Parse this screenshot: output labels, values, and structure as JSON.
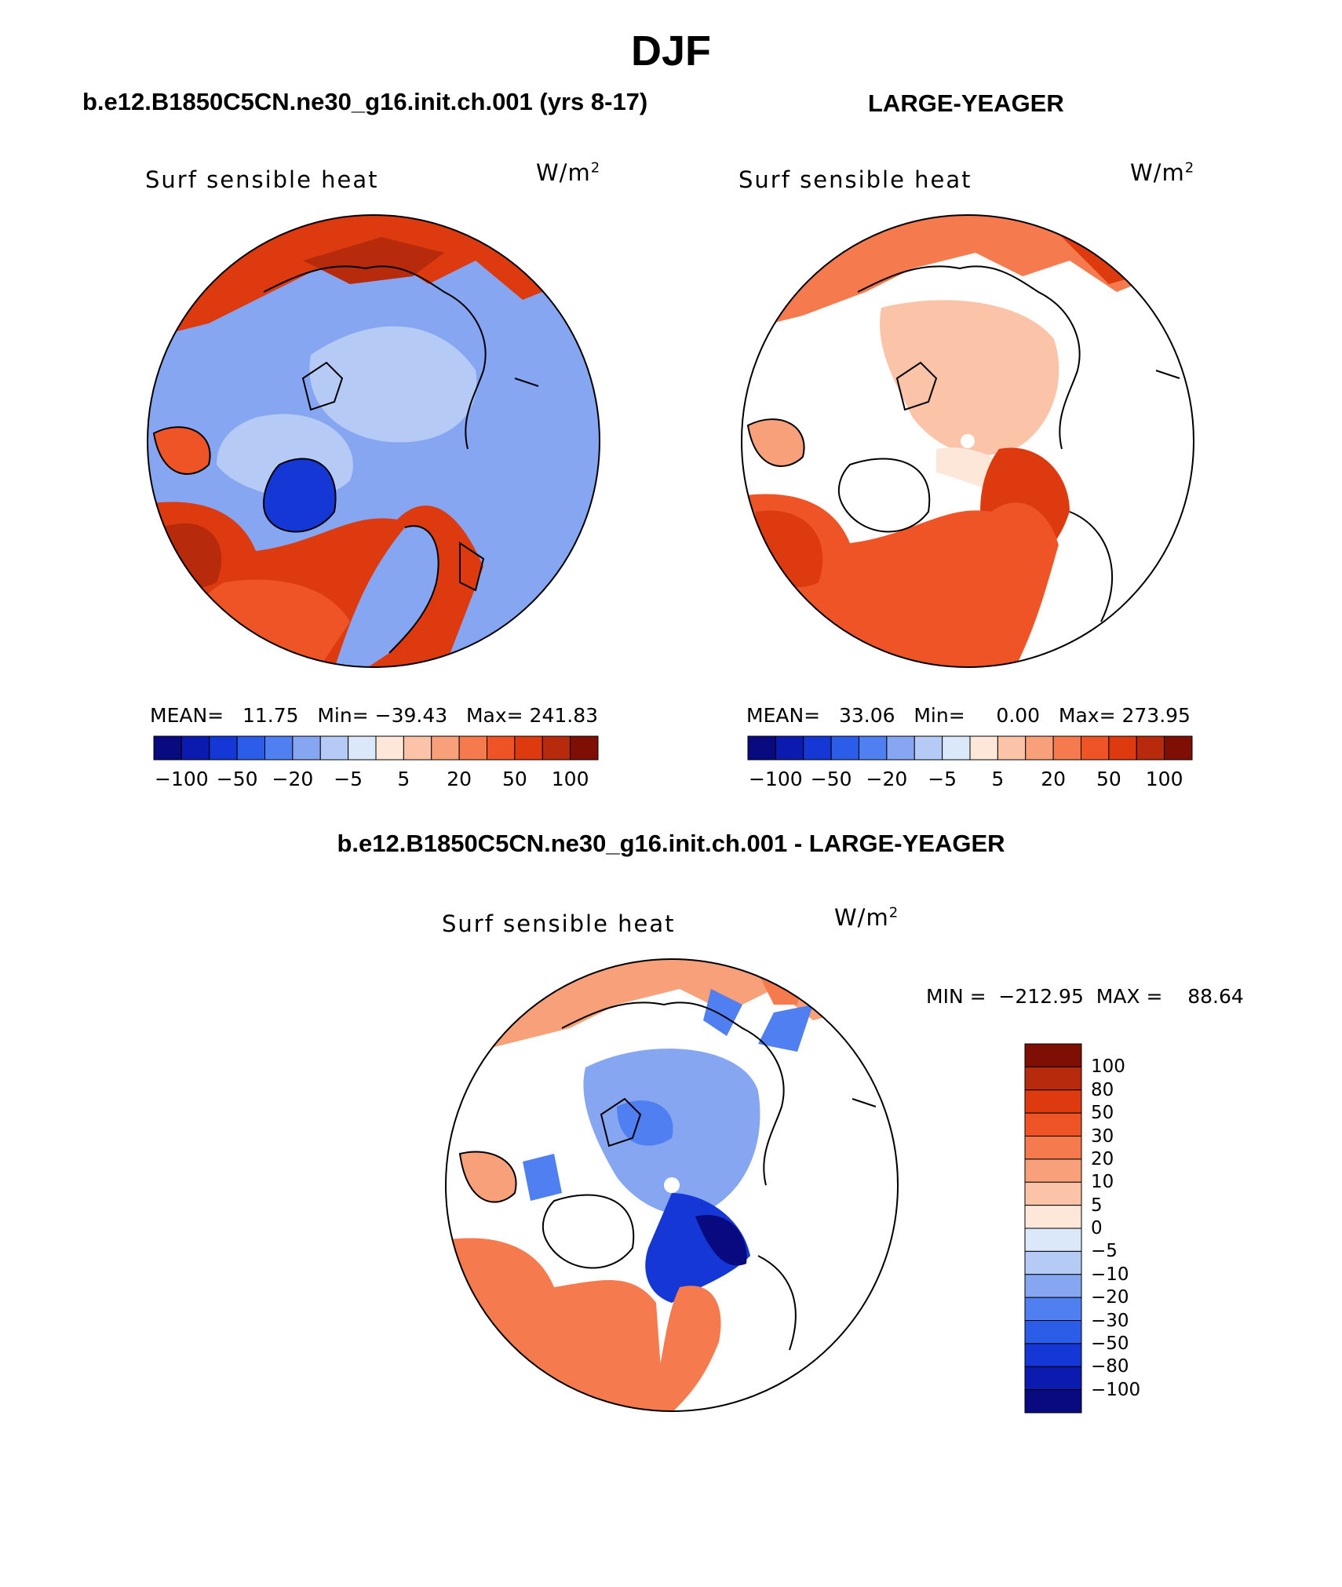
{
  "title": "DJF",
  "panels": [
    {
      "id": "case",
      "subtitle": "b.e12.B1850C5CN.ne30_g16.init.ch.001 (yrs 8-17)",
      "variable": "Surf sensible heat",
      "units_base": "W/m",
      "units_exp": "2",
      "stats": "MEAN=   11.75   Min= −39.43   Max= 241.83"
    },
    {
      "id": "obs",
      "subtitle": "LARGE-YEAGER",
      "variable": "Surf sensible heat",
      "units_base": "W/m",
      "units_exp": "2",
      "stats": "MEAN=   33.06   Min=     0.00   Max= 273.95"
    }
  ],
  "horizontal_colorbar": {
    "tick_labels": [
      "−100",
      "−50",
      "−20",
      "−5",
      "5",
      "20",
      "50",
      "100"
    ],
    "colors": [
      "#0a0a80",
      "#0b1bb0",
      "#1537d6",
      "#2b5de8",
      "#4f7ff0",
      "#86a6f2",
      "#b5cbf5",
      "#dbe8fa",
      "#fde7d9",
      "#fbc4a8",
      "#f8a07a",
      "#f57a4d",
      "#ee5425",
      "#dd3a10",
      "#b82a0c",
      "#7f0f05"
    ]
  },
  "difference_panel": {
    "subtitle": "b.e12.B1850C5CN.ne30_g16.init.ch.001 - LARGE-YEAGER",
    "variable": "Surf sensible heat",
    "units_base": "W/m",
    "units_exp": "2",
    "stats": "MIN =  −212.95  MAX =    88.64"
  },
  "vertical_colorbar": {
    "tick_labels": [
      "100",
      "80",
      "50",
      "30",
      "20",
      "10",
      "5",
      "0",
      "−5",
      "−10",
      "−20",
      "−30",
      "−50",
      "−80",
      "−100"
    ],
    "colors": [
      "#7f0f05",
      "#b82a0c",
      "#dd3a10",
      "#ee5425",
      "#f57a4d",
      "#f8a07a",
      "#fbc4a8",
      "#fde7d9",
      "#dbe8fa",
      "#b5cbf5",
      "#86a6f2",
      "#4f7ff0",
      "#2b5de8",
      "#1537d6",
      "#0b1bb0",
      "#0a0a80"
    ]
  }
}
